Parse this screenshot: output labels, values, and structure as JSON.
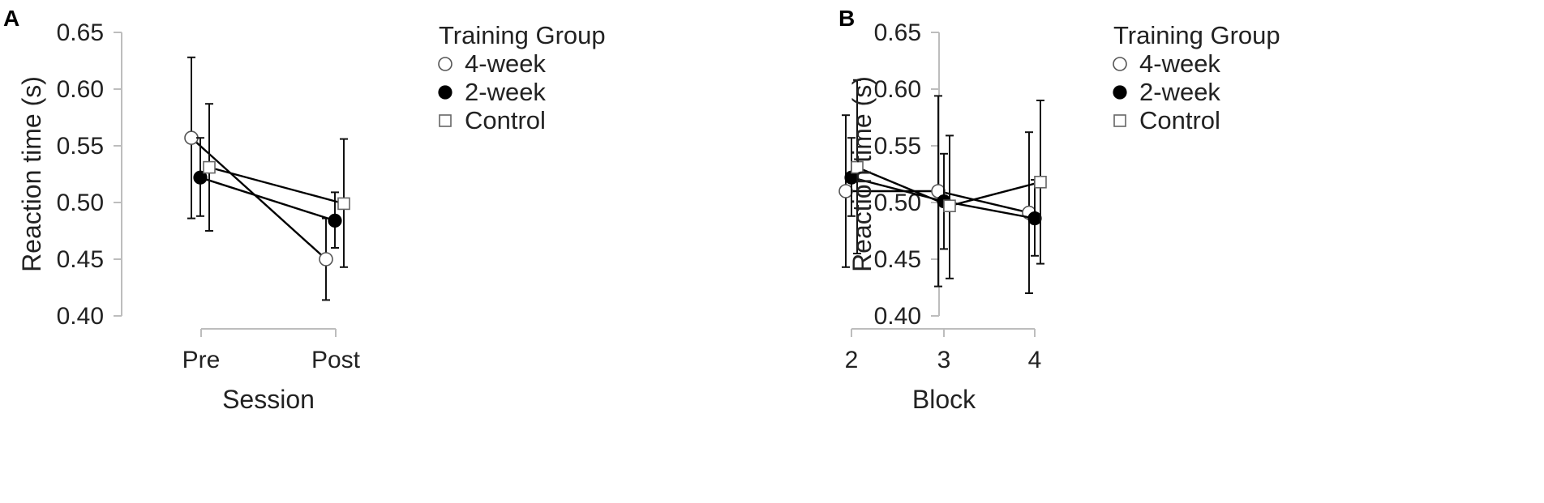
{
  "chart_data": [
    {
      "panel_label": "A",
      "type": "line",
      "xlabel": "Session",
      "ylabel": "Reaction time (s)",
      "categories": [
        "Pre",
        "Post"
      ],
      "ylim": [
        0.4,
        0.65
      ],
      "yticks": [
        "0.40",
        "0.45",
        "0.50",
        "0.55",
        "0.60",
        "0.65"
      ],
      "error_bars": true,
      "legend": {
        "title": "Training Group",
        "placement": "right"
      },
      "series": [
        {
          "name": "4-week",
          "marker": "open-circle",
          "values": [
            0.557,
            0.45
          ],
          "err_low": [
            0.486,
            0.414
          ],
          "err_high": [
            0.628,
            0.486
          ]
        },
        {
          "name": "2-week",
          "marker": "filled-circle",
          "values": [
            0.522,
            0.484
          ],
          "err_low": [
            0.488,
            0.46
          ],
          "err_high": [
            0.557,
            0.509
          ]
        },
        {
          "name": "Control",
          "marker": "open-square",
          "values": [
            0.531,
            0.499
          ],
          "err_low": [
            0.475,
            0.443
          ],
          "err_high": [
            0.587,
            0.556
          ]
        }
      ]
    },
    {
      "panel_label": "B",
      "type": "line",
      "xlabel": "Block",
      "ylabel": "Reaction time (s)",
      "categories": [
        "2",
        "3",
        "4"
      ],
      "ylim": [
        0.4,
        0.65
      ],
      "yticks": [
        "0.40",
        "0.45",
        "0.50",
        "0.55",
        "0.60",
        "0.65"
      ],
      "error_bars": true,
      "legend": {
        "title": "Training Group",
        "placement": "right"
      },
      "series": [
        {
          "name": "4-week",
          "marker": "open-circle",
          "values": [
            0.51,
            0.51,
            0.491
          ],
          "err_low": [
            0.443,
            0.426,
            0.42
          ],
          "err_high": [
            0.577,
            0.594,
            0.562
          ]
        },
        {
          "name": "2-week",
          "marker": "filled-circle",
          "values": [
            0.522,
            0.501,
            0.486
          ],
          "err_low": [
            0.488,
            0.459,
            0.453
          ],
          "err_high": [
            0.557,
            0.543,
            0.52
          ]
        },
        {
          "name": "Control",
          "marker": "open-square",
          "values": [
            0.531,
            0.497,
            0.518
          ],
          "err_low": [
            0.455,
            0.433,
            0.446
          ],
          "err_high": [
            0.608,
            0.559,
            0.59
          ]
        }
      ]
    }
  ]
}
